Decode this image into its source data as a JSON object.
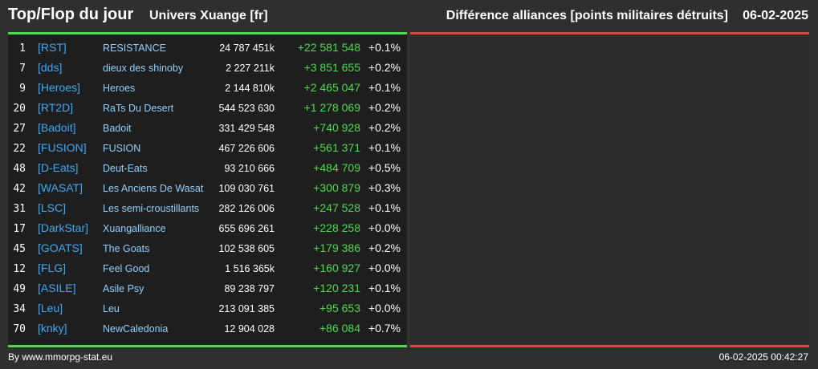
{
  "header": {
    "title": "Top/Flop du jour",
    "subtitle": "Univers Xuange [fr]",
    "right_title": "Différence alliances [points militaires détruits]",
    "date": "06-02-2025"
  },
  "colors": {
    "top_line": "#4cdc4c",
    "flop_line": "#d9473f",
    "tag": "#3fa9f5",
    "name": "#8fd0ff",
    "diff": "#4cdc4c"
  },
  "top": [
    {
      "rank": "1",
      "tag": "[RST]",
      "name": "RESISTANCE",
      "points": "24 787 451k",
      "diff": "+22 581 548",
      "pct": "+0.1%"
    },
    {
      "rank": "7",
      "tag": "[dds]",
      "name": "dieux des shinoby",
      "points": "2 227 211k",
      "diff": "+3 851 655",
      "pct": "+0.2%"
    },
    {
      "rank": "9",
      "tag": "[Heroes]",
      "name": "Heroes",
      "points": "2 144 810k",
      "diff": "+2 465 047",
      "pct": "+0.1%"
    },
    {
      "rank": "20",
      "tag": "[RT2D]",
      "name": "RaTs Du Desert",
      "points": "544 523 630",
      "diff": "+1 278 069",
      "pct": "+0.2%"
    },
    {
      "rank": "27",
      "tag": "[Badoit]",
      "name": "Badoit",
      "points": "331 429 548",
      "diff": "+740 928",
      "pct": "+0.2%"
    },
    {
      "rank": "22",
      "tag": "[FUSION]",
      "name": "FUSION",
      "points": "467 226 606",
      "diff": "+561 371",
      "pct": "+0.1%"
    },
    {
      "rank": "48",
      "tag": "[D-Eats]",
      "name": "Deut-Eats",
      "points": "93 210 666",
      "diff": "+484 709",
      "pct": "+0.5%"
    },
    {
      "rank": "42",
      "tag": "[WASAT]",
      "name": "Les Anciens De Wasat",
      "points": "109 030 761",
      "diff": "+300 879",
      "pct": "+0.3%"
    },
    {
      "rank": "31",
      "tag": "[LSC]",
      "name": "Les semi-croustillants",
      "points": "282 126 006",
      "diff": "+247 528",
      "pct": "+0.1%"
    },
    {
      "rank": "17",
      "tag": "[DarkStar]",
      "name": "Xuangalliance",
      "points": "655 696 261",
      "diff": "+228 258",
      "pct": "+0.0%"
    },
    {
      "rank": "45",
      "tag": "[GOATS]",
      "name": "The Goats",
      "points": "102 538 605",
      "diff": "+179 386",
      "pct": "+0.2%"
    },
    {
      "rank": "12",
      "tag": "[FLG]",
      "name": "Feel Good",
      "points": "1 516 365k",
      "diff": "+160 927",
      "pct": "+0.0%"
    },
    {
      "rank": "49",
      "tag": "[ASILE]",
      "name": "Asile Psy",
      "points": "89 238 797",
      "diff": "+120 231",
      "pct": "+0.1%"
    },
    {
      "rank": "34",
      "tag": "[Leu]",
      "name": "Leu",
      "points": "213 091 385",
      "diff": "+95 653",
      "pct": "+0.0%"
    },
    {
      "rank": "70",
      "tag": "[knky]",
      "name": "NewCaledonia",
      "points": "12 904 028",
      "diff": "+86 084",
      "pct": "+0.7%"
    }
  ],
  "footer": {
    "credit": "By www.mmorpg-stat.eu",
    "timestamp": "06-02-2025 00:42:27"
  }
}
